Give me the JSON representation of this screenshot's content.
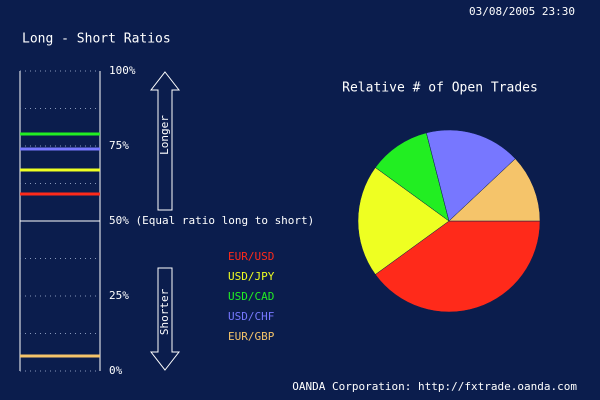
{
  "header": {
    "timestamp": "03/08/2005 23:30"
  },
  "footer": "OANDA Corporation: http://fxtrade.oanda.com",
  "chart_data": [
    {
      "type": "ratio",
      "title": "Long - Short Ratios",
      "categories": [
        "EUR/USD",
        "USD/JPY",
        "USD/CAD",
        "USD/CHF",
        "EUR/GBP"
      ],
      "values": [
        59,
        67,
        79,
        74,
        5
      ],
      "colors": [
        "#ff2a1a",
        "#eeff22",
        "#22ee22",
        "#7777ff",
        "#f5c46a"
      ],
      "ylim": [
        0,
        100
      ],
      "yticks": [
        {
          "value": 0,
          "label": "0%"
        },
        {
          "value": 25,
          "label": "25%"
        },
        {
          "value": 50,
          "label": "50% (Equal ratio long to short)"
        },
        {
          "value": 75,
          "label": "75%"
        },
        {
          "value": 100,
          "label": "100%"
        }
      ],
      "minor_yticks": [
        12.5,
        37.5,
        62.5,
        87.5
      ],
      "annotations": [
        "Longer",
        "Shorter"
      ]
    },
    {
      "type": "pie",
      "title": "Relative # of Open Trades",
      "values": [
        40,
        20,
        11,
        17,
        12
      ],
      "colors": [
        "#ff2a1a",
        "#eeff22",
        "#22ee22",
        "#7777ff",
        "#f5c46a"
      ]
    }
  ]
}
